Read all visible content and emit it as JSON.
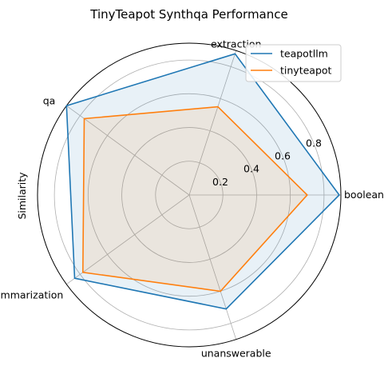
{
  "chart_data": {
    "type": "radar",
    "title": "TinyTeapot Synthqa Performance",
    "ylabel": "Similarity",
    "categories": [
      "boolean",
      "extraction",
      "qa",
      "summarization",
      "unanswerable"
    ],
    "rlim": [
      0,
      0.9
    ],
    "rticks": [
      0.2,
      0.4,
      0.6,
      0.8
    ],
    "rtick_labels": [
      "0.2",
      "0.4",
      "0.6",
      "0.8"
    ],
    "grid": true,
    "legend_position": "top-right",
    "series": [
      {
        "name": "teapotllm",
        "color": "#1f77b4",
        "values": [
          0.89,
          0.88,
          0.9,
          0.84,
          0.71
        ]
      },
      {
        "name": "tinyteapot",
        "color": "#ff7f0e",
        "values": [
          0.7,
          0.55,
          0.77,
          0.78,
          0.6
        ]
      }
    ]
  }
}
